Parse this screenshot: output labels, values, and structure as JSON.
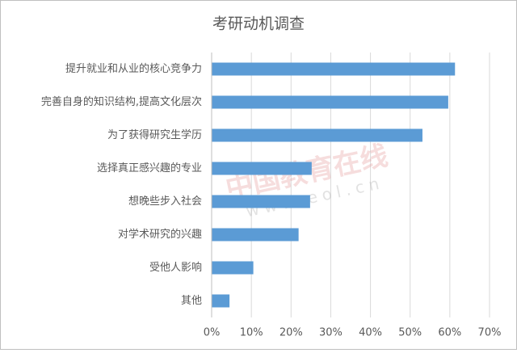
{
  "chart_data": {
    "type": "bar",
    "orientation": "horizontal",
    "title": "考研动机调查",
    "categories": [
      "提升就业和从业的核心竞争力",
      "完善自身的知识结构,提高文化层次",
      "为了获得研究生学历",
      "选择真正感兴趣的专业",
      "想晚些步入社会",
      "对学术研究的兴趣",
      "受他人影响",
      "其他"
    ],
    "values": [
      61.3,
      59.6,
      53.1,
      25.2,
      24.8,
      21.9,
      10.5,
      4.5
    ],
    "color": "#5b9bd5",
    "xlim": [
      0,
      70
    ],
    "xticks": [
      {
        "value": 0,
        "label": "0%"
      },
      {
        "value": 10,
        "label": "10%"
      },
      {
        "value": 20,
        "label": "20%"
      },
      {
        "value": 30,
        "label": "30%"
      },
      {
        "value": 40,
        "label": "40%"
      },
      {
        "value": 50,
        "label": "50%"
      },
      {
        "value": 60,
        "label": "60%"
      },
      {
        "value": 70,
        "label": "70%"
      }
    ],
    "grid": true,
    "watermark": {
      "text": "中国教育在线",
      "url": "www.eol.cn"
    }
  }
}
